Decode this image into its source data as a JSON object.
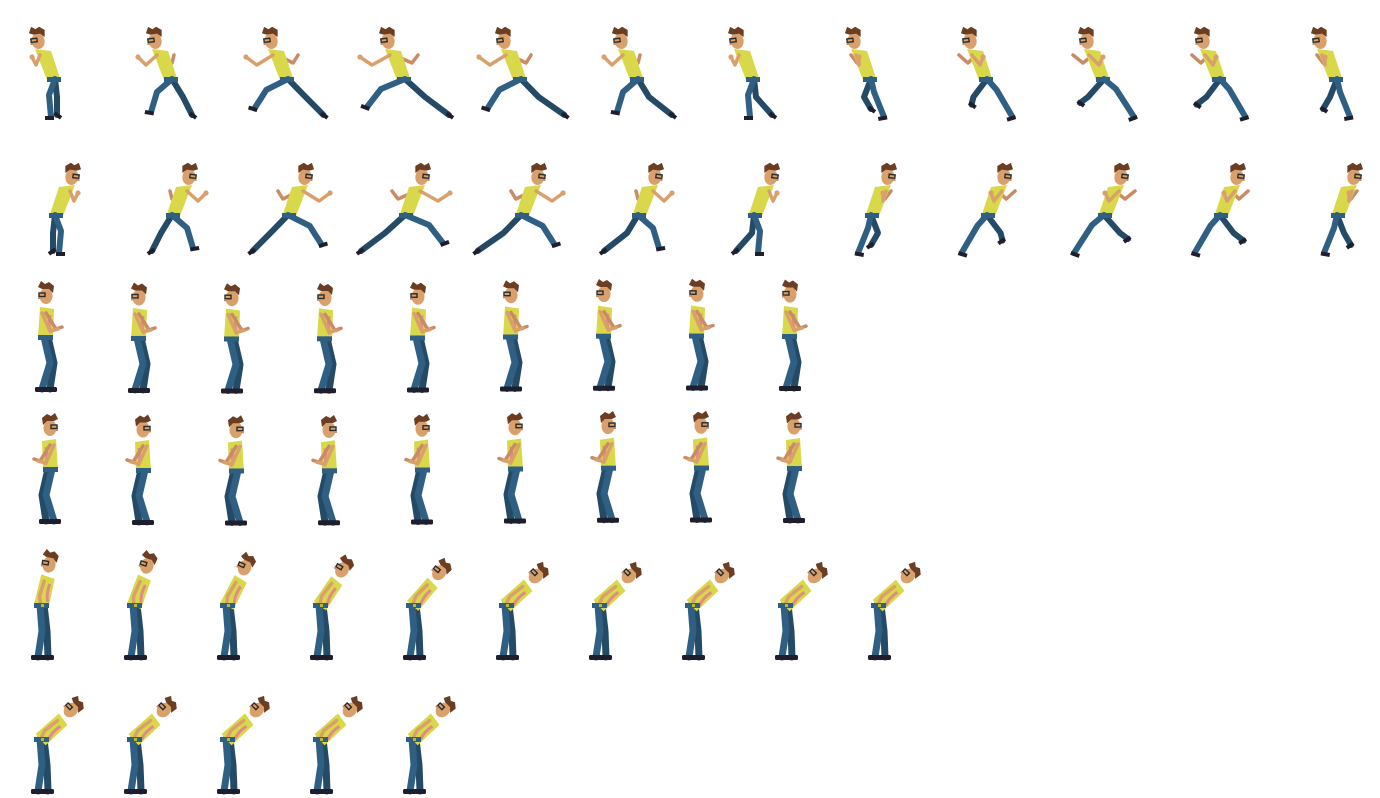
{
  "sheet": {
    "background": "#ffffff",
    "palette": {
      "shirt": "#d8d84a",
      "shirt_shade": "#b9b838",
      "jeans": "#2f5f82",
      "jeans_dark": "#244a66",
      "skin": "#d9a06c",
      "skin_shade": "#c98b66",
      "hair": "#6b3d22",
      "shoes": "#1e1e2c",
      "glasses": "#2a2a2a"
    },
    "animations": [
      {
        "id": "run-left",
        "pose": "run",
        "facing": "left",
        "frames": 12
      },
      {
        "id": "run-right",
        "pose": "run",
        "facing": "right",
        "frames": 12
      },
      {
        "id": "idle-crouch-left",
        "pose": "crouch",
        "facing": "left",
        "frames": 9
      },
      {
        "id": "idle-crouch-right",
        "pose": "crouch",
        "facing": "right",
        "frames": 9
      },
      {
        "id": "bow-left",
        "pose": "bow",
        "facing": "left",
        "frames": 10
      },
      {
        "id": "bow-hold-left",
        "pose": "bow",
        "facing": "left",
        "frames": 5
      }
    ]
  }
}
